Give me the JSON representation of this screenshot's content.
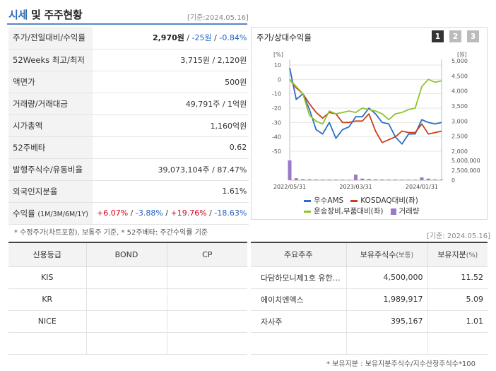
{
  "header": {
    "title_main": "시세",
    "title_rest": " 및 주주현황",
    "date": "[기준:2024.05.16]"
  },
  "price_table": {
    "rows": [
      {
        "label": "주가/전일대비/수익률",
        "price": "2,970원",
        "sep1": " / ",
        "change": "-25원",
        "sep2": " / ",
        "rate": "-0.84%"
      },
      {
        "label": "52Weeks 최고/최저",
        "value": "3,715원 / 2,120원"
      },
      {
        "label": "액면가",
        "value": "500원"
      },
      {
        "label": "거래량/거래대금",
        "value": "49,791주 / 1억원"
      },
      {
        "label": "시가총액",
        "value": "1,160억원"
      },
      {
        "label": "52주베타",
        "value": "0.62"
      },
      {
        "label": "발행주식수/유동비율",
        "value": "39,073,104주 / 87.47%"
      },
      {
        "label": "외국인지분율",
        "value": "1.61%"
      }
    ],
    "returns": {
      "label": "수익률",
      "sub": "(1M/3M/6M/1Y)",
      "r1m": "+6.07%",
      "r3m": "-3.88%",
      "r6m": "+19.76%",
      "r1y": "-18.63%",
      "sep": " / "
    },
    "note": "* 수정주가(차트포함), 보통주 기준, * 52주베타: 주간수익률 기준"
  },
  "chart_panel": {
    "title": "주가/상대수익률",
    "pages": [
      "1",
      "2",
      "3"
    ],
    "colors": {
      "stock": "#2b6fc4",
      "kosdaq": "#c9401c",
      "sector": "#8ec42f",
      "volume": "#9a79c9"
    }
  },
  "chart_data": {
    "type": "line",
    "left_unit": "[%]",
    "right_unit": "[원]",
    "y_left_ticks": [
      "10",
      "0",
      "-10",
      "-20",
      "-30",
      "-40",
      "-50"
    ],
    "y_left_range": [
      -50,
      10
    ],
    "y_right_ticks": [
      "5,000",
      "4,500",
      "4,000",
      "3,500",
      "3,000",
      "2,500",
      "2,000"
    ],
    "y_right_range": [
      2000,
      5000
    ],
    "volume_ticks": [
      "5,000,000",
      "2,500,000",
      "0"
    ],
    "volume_range": [
      0,
      5000000
    ],
    "x_ticks": [
      "2022/05/31",
      "2023/03/31",
      "2024/01/31"
    ],
    "x_tick_index": [
      0,
      10,
      20
    ],
    "series": [
      {
        "name": "우수AMS",
        "key": "stock",
        "values": [
          8,
          -14,
          -10,
          -21,
          -35,
          -38,
          -30,
          -41,
          -35,
          -33,
          -26,
          -26,
          -20,
          -24,
          -30,
          -31,
          -40,
          -45,
          -38,
          -38,
          -28,
          -30,
          -31,
          -30
        ]
      },
      {
        "name": "KOSDAQ대비(좌)",
        "key": "kosdaq",
        "values": [
          0,
          -6,
          -10,
          -17,
          -23,
          -27,
          -23,
          -24,
          -30,
          -30,
          -29,
          -29,
          -24,
          -36,
          -44,
          -42,
          -40,
          -36,
          -37,
          -37,
          -31,
          -38,
          -37,
          -36
        ]
      },
      {
        "name": "운송장비,부품대비(좌)",
        "key": "sector",
        "values": [
          0,
          -5,
          -10,
          -25,
          -29,
          -31,
          -22,
          -24,
          -23,
          -22,
          -23,
          -20,
          -21,
          -22,
          -24,
          -28,
          -24,
          -23,
          -21,
          -20,
          -5,
          0,
          -2,
          -1
        ]
      }
    ],
    "volume": {
      "name": "거래량",
      "values": [
        5200000,
        500000,
        250000,
        220000,
        180000,
        150000,
        160000,
        150000,
        140000,
        130000,
        1400000,
        400000,
        300000,
        200000,
        180000,
        150000,
        160000,
        140000,
        130000,
        120000,
        700000,
        400000,
        200000,
        150000
      ]
    }
  },
  "date2": "[기준: 2024.05.16]",
  "credit_table": {
    "headers": [
      "신용등급",
      "BOND",
      "CP"
    ],
    "rows": [
      [
        "KIS",
        "",
        ""
      ],
      [
        "KR",
        "",
        ""
      ],
      [
        "NICE",
        "",
        ""
      ],
      [
        "",
        "",
        ""
      ]
    ]
  },
  "holders_table": {
    "headers": [
      "주요주주",
      "보유주식수",
      "(보통)",
      "보유지분",
      "(%)"
    ],
    "rows": [
      [
        "다담하모니제1호 유한…",
        "4,500,000",
        "11.52"
      ],
      [
        "에이치엔엑스",
        "1,989,917",
        "5.09"
      ],
      [
        "자사주",
        "395,167",
        "1.01"
      ],
      [
        "",
        "",
        ""
      ]
    ],
    "note": "* 보유지분 : 보유지분주식수/지수산정주식수*100"
  }
}
